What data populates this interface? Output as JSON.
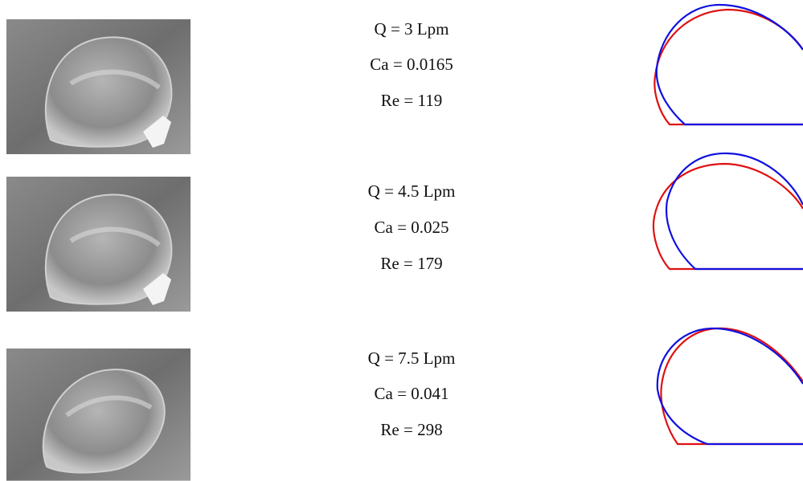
{
  "rows": [
    {
      "flow": "Q = 3 Lpm",
      "capillary": "Ca = 0.0165",
      "reynolds": "Re = 119"
    },
    {
      "flow": "Q = 4.5 Lpm",
      "capillary": "Ca = 0.025",
      "reynolds": "Re = 179"
    },
    {
      "flow": "Q = 7.5 Lpm",
      "capillary": "Ca = 0.041",
      "reynolds": "Re = 298"
    }
  ]
}
